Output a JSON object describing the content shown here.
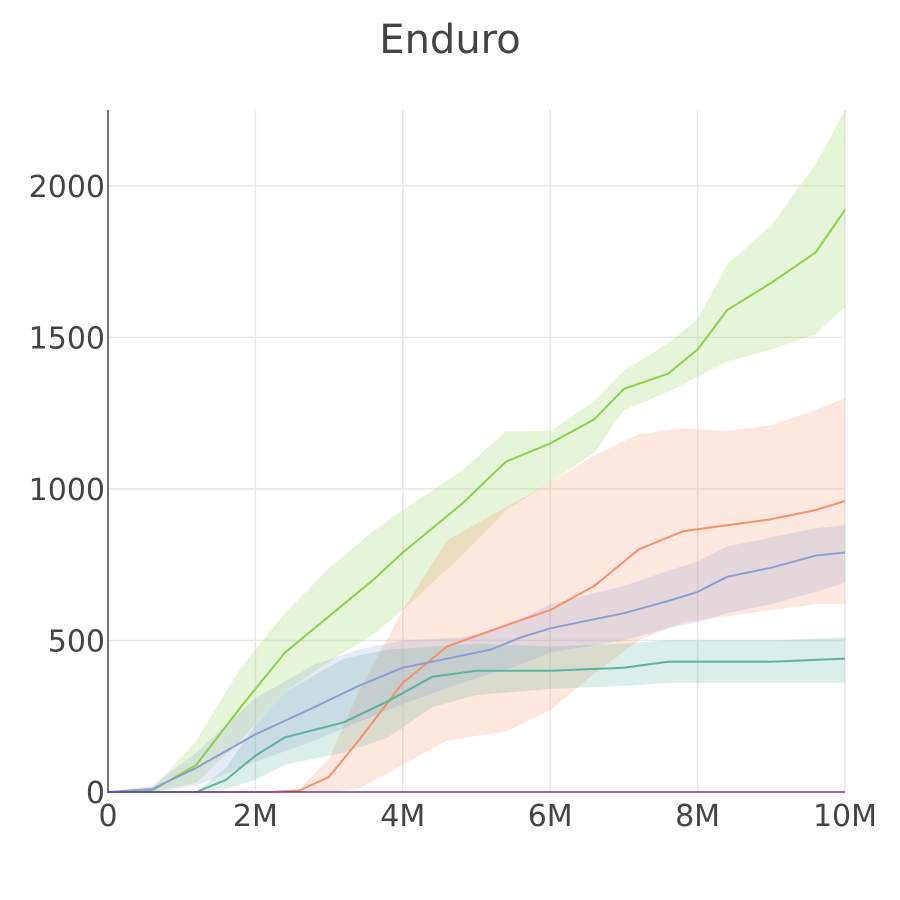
{
  "chart_data": {
    "type": "line",
    "title": "Enduro",
    "xlabel": "",
    "ylabel": "",
    "xlim": [
      0,
      10000000
    ],
    "ylim": [
      0,
      2250
    ],
    "xticks": [
      0,
      2000000,
      4000000,
      6000000,
      8000000,
      10000000
    ],
    "xtick_labels": [
      "0",
      "2M",
      "4M",
      "6M",
      "8M",
      "10M"
    ],
    "yticks": [
      0,
      500,
      1000,
      1500,
      2000
    ],
    "ytick_labels": [
      "0",
      "500",
      "1000",
      "1500",
      "2000"
    ],
    "grid": true,
    "legend": "none",
    "series": [
      {
        "color": "#8fd14f",
        "x": [
          0,
          600000,
          1200000,
          1800000,
          2400000,
          3000000,
          3600000,
          4000000,
          4800000,
          5400000,
          6000000,
          6600000,
          7000000,
          7600000,
          8000000,
          8400000,
          9000000,
          9600000,
          10000000
        ],
        "y": [
          0,
          5,
          90,
          280,
          460,
          580,
          700,
          790,
          950,
          1090,
          1150,
          1230,
          1330,
          1380,
          1460,
          1590,
          1680,
          1780,
          1920
        ],
        "lower": [
          0,
          0,
          30,
          170,
          330,
          430,
          520,
          600,
          780,
          930,
          1020,
          1120,
          1260,
          1320,
          1370,
          1420,
          1460,
          1510,
          1600
        ],
        "upper": [
          0,
          10,
          170,
          410,
          590,
          740,
          860,
          930,
          1060,
          1190,
          1190,
          1290,
          1390,
          1480,
          1560,
          1740,
          1870,
          2070,
          2250
        ]
      },
      {
        "color": "#f4926b",
        "x": [
          0,
          2200000,
          2600000,
          3000000,
          3400000,
          4000000,
          4600000,
          5400000,
          6000000,
          6600000,
          7200000,
          7800000,
          8400000,
          9000000,
          9600000,
          10000000
        ],
        "y": [
          0,
          0,
          5,
          50,
          170,
          360,
          480,
          550,
          600,
          680,
          800,
          860,
          880,
          900,
          930,
          960
        ],
        "lower": [
          0,
          0,
          0,
          0,
          10,
          90,
          170,
          200,
          270,
          390,
          500,
          560,
          580,
          600,
          620,
          620
        ],
        "upper": [
          0,
          0,
          10,
          110,
          330,
          600,
          830,
          940,
          1020,
          1110,
          1180,
          1200,
          1190,
          1210,
          1260,
          1300
        ]
      },
      {
        "color": "#8e9fd1",
        "x": [
          0,
          600000,
          1200000,
          2000000,
          2800000,
          3400000,
          4000000,
          4800000,
          5200000,
          5600000,
          6000000,
          7000000,
          7600000,
          8000000,
          8400000,
          9000000,
          9600000,
          10000000
        ],
        "y": [
          0,
          10,
          80,
          190,
          280,
          350,
          410,
          450,
          470,
          510,
          540,
          590,
          630,
          660,
          710,
          740,
          780,
          790
        ],
        "lower": [
          0,
          0,
          20,
          100,
          170,
          230,
          290,
          360,
          390,
          420,
          460,
          500,
          540,
          560,
          590,
          620,
          660,
          690
        ],
        "upper": [
          0,
          20,
          130,
          310,
          420,
          470,
          500,
          510,
          530,
          570,
          620,
          680,
          730,
          760,
          810,
          840,
          870,
          880
        ]
      },
      {
        "color": "#5db39b",
        "x": [
          0,
          1200000,
          1600000,
          2000000,
          2400000,
          3200000,
          3800000,
          4400000,
          5000000,
          6000000,
          7000000,
          7600000,
          8400000,
          9000000,
          10000000
        ],
        "y": [
          0,
          0,
          40,
          120,
          180,
          230,
          300,
          380,
          400,
          400,
          410,
          430,
          430,
          430,
          440
        ],
        "lower": [
          0,
          0,
          10,
          40,
          90,
          130,
          180,
          280,
          320,
          340,
          350,
          360,
          360,
          360,
          360
        ],
        "upper": [
          0,
          0,
          80,
          220,
          330,
          440,
          470,
          480,
          490,
          480,
          490,
          500,
          500,
          500,
          510
        ]
      }
    ]
  }
}
